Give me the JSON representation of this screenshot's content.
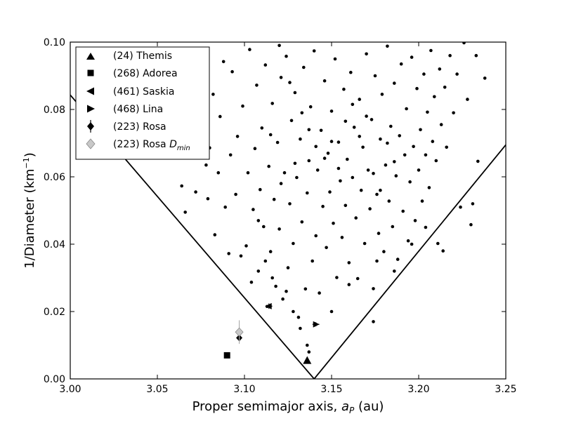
{
  "chart_data": {
    "type": "scatter",
    "xlabel": "Proper semimajor axis, a_P (au)",
    "xlabel_parts": {
      "prefix": "Proper semimajor axis, ",
      "var": "a",
      "sub": "P",
      "suffix": " (au)"
    },
    "ylabel": "1/Diameter (km^-1)",
    "ylabel_parts": {
      "prefix": "1/Diameter (km",
      "sup": "−1",
      "suffix": ")"
    },
    "xlim": [
      3.0,
      3.25
    ],
    "ylim": [
      0.0,
      0.1
    ],
    "x_ticks": [
      "3.00",
      "3.05",
      "3.10",
      "3.15",
      "3.20",
      "3.25"
    ],
    "y_ticks": [
      "0.00",
      "0.02",
      "0.04",
      "0.06",
      "0.08",
      "0.10"
    ],
    "grid": false,
    "legend_position": "top-left",
    "legend": [
      {
        "marker": "triangle-up",
        "label": "(24) Themis",
        "color": "#000000"
      },
      {
        "marker": "square",
        "label": "(268) Adorea",
        "color": "#000000"
      },
      {
        "marker": "triangle-left",
        "label": "(461) Saskia",
        "color": "#000000"
      },
      {
        "marker": "triangle-right",
        "label": "(468) Lina",
        "color": "#000000"
      },
      {
        "marker": "diamond-errorbar",
        "label": "(223) Rosa",
        "color": "#000000"
      },
      {
        "marker": "diamond",
        "label": "(223) Rosa D_min",
        "label_text": "(223) Rosa ",
        "label_var": "D",
        "label_sub": "min",
        "color": "#bbbbbb"
      }
    ],
    "v_shape_boundary": {
      "left_line": [
        [
          2.993,
          0.0885
        ],
        [
          3.14,
          0.0
        ]
      ],
      "right_line": [
        [
          3.14,
          0.0
        ],
        [
          3.25,
          0.0695
        ]
      ]
    },
    "highlighted_points": [
      {
        "name": "(24) Themis",
        "marker": "triangle-up",
        "x": 3.136,
        "y": 0.0055
      },
      {
        "name": "(268) Adorea",
        "marker": "square",
        "x": 3.09,
        "y": 0.007
      },
      {
        "name": "(461) Saskia",
        "marker": "triangle-left",
        "x": 3.114,
        "y": 0.0216,
        "xerr": 0.002,
        "yerr": 0.0008
      },
      {
        "name": "(468) Lina",
        "marker": "triangle-right",
        "x": 3.141,
        "y": 0.0162,
        "xerr": 0.002,
        "yerr": 0.0006
      },
      {
        "name": "(223) Rosa",
        "marker": "diamond",
        "x": 3.097,
        "y": 0.0122,
        "yerr": 0.0012
      },
      {
        "name": "(223) Rosa D_min",
        "marker": "diamond",
        "x": 3.097,
        "y": 0.0139,
        "yerr": 0.0035
      }
    ],
    "family_members": [
      [
        3.064,
        0.0573
      ],
      [
        3.066,
        0.0495
      ],
      [
        3.072,
        0.0555
      ],
      [
        3.078,
        0.0635
      ],
      [
        3.079,
        0.0535
      ],
      [
        3.08,
        0.0686
      ],
      [
        3.082,
        0.0845
      ],
      [
        3.083,
        0.0428
      ],
      [
        3.085,
        0.0612
      ],
      [
        3.086,
        0.0779
      ],
      [
        3.088,
        0.0942
      ],
      [
        3.089,
        0.051
      ],
      [
        3.091,
        0.0372
      ],
      [
        3.092,
        0.0665
      ],
      [
        3.093,
        0.0912
      ],
      [
        3.095,
        0.0548
      ],
      [
        3.096,
        0.072
      ],
      [
        3.098,
        0.0365
      ],
      [
        3.099,
        0.081
      ],
      [
        3.101,
        0.0395
      ],
      [
        3.102,
        0.0612
      ],
      [
        3.103,
        0.0978
      ],
      [
        3.104,
        0.0287
      ],
      [
        3.105,
        0.0503
      ],
      [
        3.106,
        0.0684
      ],
      [
        3.107,
        0.0872
      ],
      [
        3.108,
        0.032
      ],
      [
        3.109,
        0.0562
      ],
      [
        3.11,
        0.0745
      ],
      [
        3.111,
        0.0452
      ],
      [
        3.112,
        0.0932
      ],
      [
        3.113,
        0.0215
      ],
      [
        3.114,
        0.0631
      ],
      [
        3.115,
        0.0378
      ],
      [
        3.116,
        0.0818
      ],
      [
        3.117,
        0.0533
      ],
      [
        3.118,
        0.0275
      ],
      [
        3.119,
        0.0702
      ],
      [
        3.12,
        0.0445
      ],
      [
        3.121,
        0.0895
      ],
      [
        3.122,
        0.0237
      ],
      [
        3.123,
        0.0612
      ],
      [
        3.124,
        0.0958
      ],
      [
        3.125,
        0.033
      ],
      [
        3.126,
        0.052
      ],
      [
        3.127,
        0.0767
      ],
      [
        3.128,
        0.0402
      ],
      [
        3.129,
        0.085
      ],
      [
        3.13,
        0.0598
      ],
      [
        3.131,
        0.0183
      ],
      [
        3.132,
        0.0712
      ],
      [
        3.133,
        0.0466
      ],
      [
        3.134,
        0.0925
      ],
      [
        3.135,
        0.0267
      ],
      [
        3.136,
        0.0552
      ],
      [
        3.137,
        0.0648
      ],
      [
        3.138,
        0.0808
      ],
      [
        3.139,
        0.035
      ],
      [
        3.14,
        0.0974
      ],
      [
        3.141,
        0.0425
      ],
      [
        3.142,
        0.062
      ],
      [
        3.143,
        0.0255
      ],
      [
        3.144,
        0.0738
      ],
      [
        3.145,
        0.0512
      ],
      [
        3.146,
        0.0885
      ],
      [
        3.147,
        0.039
      ],
      [
        3.148,
        0.067
      ],
      [
        3.149,
        0.0555
      ],
      [
        3.15,
        0.0795
      ],
      [
        3.151,
        0.0462
      ],
      [
        3.152,
        0.095
      ],
      [
        3.153,
        0.0301
      ],
      [
        3.154,
        0.0703
      ],
      [
        3.155,
        0.0588
      ],
      [
        3.156,
        0.042
      ],
      [
        3.157,
        0.086
      ],
      [
        3.158,
        0.0515
      ],
      [
        3.159,
        0.0652
      ],
      [
        3.16,
        0.0345
      ],
      [
        3.161,
        0.091
      ],
      [
        3.162,
        0.0598
      ],
      [
        3.163,
        0.0747
      ],
      [
        3.164,
        0.0478
      ],
      [
        3.165,
        0.0298
      ],
      [
        3.166,
        0.083
      ],
      [
        3.167,
        0.056
      ],
      [
        3.168,
        0.0688
      ],
      [
        3.169,
        0.0402
      ],
      [
        3.17,
        0.0965
      ],
      [
        3.171,
        0.062
      ],
      [
        3.172,
        0.0505
      ],
      [
        3.173,
        0.077
      ],
      [
        3.174,
        0.0268
      ],
      [
        3.175,
        0.09
      ],
      [
        3.176,
        0.0548
      ],
      [
        3.177,
        0.0432
      ],
      [
        3.178,
        0.0712
      ],
      [
        3.179,
        0.0845
      ],
      [
        3.18,
        0.0378
      ],
      [
        3.181,
        0.0635
      ],
      [
        3.182,
        0.0988
      ],
      [
        3.183,
        0.0528
      ],
      [
        3.184,
        0.075
      ],
      [
        3.185,
        0.0452
      ],
      [
        3.186,
        0.0878
      ],
      [
        3.187,
        0.0603
      ],
      [
        3.188,
        0.0355
      ],
      [
        3.189,
        0.0722
      ],
      [
        3.19,
        0.0935
      ],
      [
        3.191,
        0.0498
      ],
      [
        3.192,
        0.0665
      ],
      [
        3.193,
        0.0802
      ],
      [
        3.194,
        0.041
      ],
      [
        3.195,
        0.0585
      ],
      [
        3.196,
        0.0955
      ],
      [
        3.197,
        0.069
      ],
      [
        3.198,
        0.047
      ],
      [
        3.199,
        0.0862
      ],
      [
        3.2,
        0.062
      ],
      [
        3.201,
        0.074
      ],
      [
        3.202,
        0.0528
      ],
      [
        3.203,
        0.0905
      ],
      [
        3.204,
        0.0665
      ],
      [
        3.205,
        0.0792
      ],
      [
        3.206,
        0.0568
      ],
      [
        3.207,
        0.0975
      ],
      [
        3.208,
        0.0705
      ],
      [
        3.209,
        0.0838
      ],
      [
        3.21,
        0.0648
      ],
      [
        3.211,
        0.0402
      ],
      [
        3.212,
        0.092
      ],
      [
        3.213,
        0.0755
      ],
      [
        3.214,
        0.038
      ],
      [
        3.215,
        0.0866
      ],
      [
        3.216,
        0.0688
      ],
      [
        3.218,
        0.096
      ],
      [
        3.22,
        0.079
      ],
      [
        3.222,
        0.0905
      ],
      [
        3.224,
        0.051
      ],
      [
        3.226,
        0.0998
      ],
      [
        3.228,
        0.083
      ],
      [
        3.23,
        0.0458
      ],
      [
        3.231,
        0.052
      ],
      [
        3.233,
        0.096
      ],
      [
        3.234,
        0.0646
      ],
      [
        3.238,
        0.0893
      ],
      [
        3.12,
        0.099
      ],
      [
        3.115,
        0.0725
      ],
      [
        3.121,
        0.058
      ],
      [
        3.126,
        0.088
      ],
      [
        3.129,
        0.064
      ],
      [
        3.133,
        0.079
      ],
      [
        3.137,
        0.074
      ],
      [
        3.141,
        0.069
      ],
      [
        3.146,
        0.0655
      ],
      [
        3.15,
        0.0705
      ],
      [
        3.154,
        0.0625
      ],
      [
        3.158,
        0.0765
      ],
      [
        3.162,
        0.0815
      ],
      [
        3.166,
        0.072
      ],
      [
        3.17,
        0.078
      ],
      [
        3.174,
        0.061
      ],
      [
        3.178,
        0.056
      ],
      [
        3.182,
        0.07
      ],
      [
        3.186,
        0.0645
      ],
      [
        3.108,
        0.047
      ],
      [
        3.112,
        0.035
      ],
      [
        3.116,
        0.03
      ],
      [
        3.124,
        0.026
      ],
      [
        3.128,
        0.02
      ],
      [
        3.132,
        0.015
      ],
      [
        3.136,
        0.01
      ],
      [
        3.137,
        0.008
      ],
      [
        3.15,
        0.02
      ],
      [
        3.16,
        0.028
      ],
      [
        3.174,
        0.017
      ],
      [
        3.176,
        0.035
      ],
      [
        3.186,
        0.032
      ],
      [
        3.196,
        0.04
      ],
      [
        3.204,
        0.045
      ]
    ]
  }
}
